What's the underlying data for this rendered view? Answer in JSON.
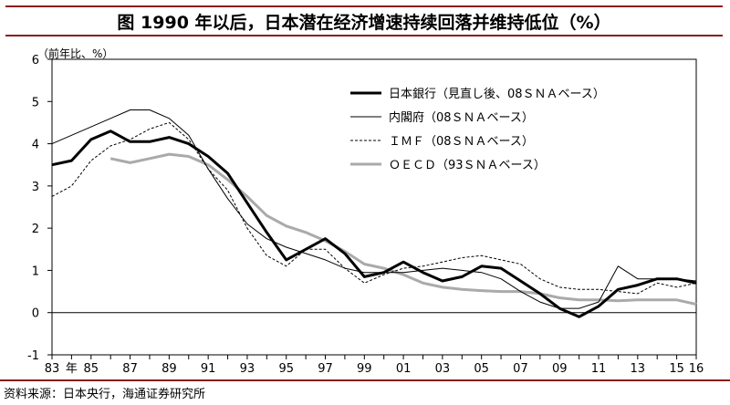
{
  "header": {
    "title": "图  1990 年以后，日本潜在经济增速持续回落并维持低位（%）"
  },
  "footer": {
    "source": "资料来源：日本央行，海通证券研究所"
  },
  "chart_data": {
    "type": "line",
    "title": "图  1990 年以后，日本潜在经济增速持续回落并维持低位（%）",
    "ylabel": "（前年比、%）",
    "xlabel": "年",
    "ylim": [
      -1,
      6
    ],
    "yticks": [
      -1,
      0,
      1,
      2,
      3,
      4,
      5,
      6
    ],
    "xlim": [
      1983,
      2016
    ],
    "xtick_labels": [
      "83",
      "85",
      "87",
      "89",
      "91",
      "93",
      "95",
      "97",
      "99",
      "01",
      "03",
      "05",
      "07",
      "09",
      "11",
      "13",
      "15",
      "16"
    ],
    "xtick_years": [
      1983,
      1985,
      1987,
      1989,
      1991,
      1993,
      1995,
      1997,
      1999,
      2001,
      2003,
      2005,
      2007,
      2009,
      2011,
      2013,
      2015,
      2016
    ],
    "grid": false,
    "legend_position": "top-right",
    "series": [
      {
        "name": "日本銀行（見直し後、08ＳＮＡベース）",
        "style": "thick",
        "color": "#000000",
        "x": [
          1983,
          1984,
          1985,
          1986,
          1987,
          1988,
          1989,
          1990,
          1991,
          1992,
          1993,
          1994,
          1995,
          1996,
          1997,
          1998,
          1999,
          2000,
          2001,
          2002,
          2003,
          2004,
          2005,
          2006,
          2007,
          2008,
          2009,
          2010,
          2011,
          2012,
          2013,
          2014,
          2015,
          2016
        ],
        "y": [
          3.5,
          3.6,
          4.1,
          4.3,
          4.05,
          4.05,
          4.15,
          4.0,
          3.7,
          3.3,
          2.6,
          1.9,
          1.25,
          1.5,
          1.75,
          1.4,
          0.85,
          0.95,
          1.2,
          0.95,
          0.75,
          0.85,
          1.1,
          1.05,
          0.75,
          0.45,
          0.1,
          -0.1,
          0.15,
          0.55,
          0.65,
          0.8,
          0.8,
          0.7
        ]
      },
      {
        "name": "内閣府（08ＳＮＡベース）",
        "style": "thin",
        "color": "#000000",
        "x": [
          1983,
          1984,
          1985,
          1986,
          1987,
          1988,
          1989,
          1990,
          1991,
          1992,
          1993,
          1994,
          1995,
          1996,
          1997,
          1998,
          1999,
          2000,
          2001,
          2002,
          2003,
          2004,
          2005,
          2006,
          2007,
          2008,
          2009,
          2010,
          2011,
          2012,
          2013,
          2014,
          2015,
          2016
        ],
        "y": [
          4.0,
          4.2,
          4.4,
          4.6,
          4.8,
          4.8,
          4.6,
          4.2,
          3.4,
          2.7,
          2.1,
          1.75,
          1.55,
          1.4,
          1.25,
          1.05,
          0.95,
          0.95,
          0.95,
          1.0,
          1.05,
          1.0,
          0.95,
          0.8,
          0.5,
          0.25,
          0.1,
          0.1,
          0.25,
          1.1,
          0.8,
          0.8,
          0.8,
          0.75
        ]
      },
      {
        "name": "ＩＭＦ（08ＳＮＡベース）",
        "style": "dashed",
        "color": "#000000",
        "x": [
          1983,
          1984,
          1985,
          1986,
          1987,
          1988,
          1989,
          1990,
          1991,
          1992,
          1993,
          1994,
          1995,
          1996,
          1997,
          1998,
          1999,
          2000,
          2001,
          2002,
          2003,
          2004,
          2005,
          2006,
          2007,
          2008,
          2009,
          2010,
          2011,
          2012,
          2013,
          2014,
          2015,
          2016
        ],
        "y": [
          2.75,
          3.0,
          3.6,
          3.95,
          4.1,
          4.35,
          4.5,
          4.1,
          3.4,
          2.9,
          2.0,
          1.35,
          1.1,
          1.5,
          1.5,
          1.05,
          0.7,
          0.9,
          1.05,
          1.1,
          1.2,
          1.3,
          1.35,
          1.25,
          1.15,
          0.8,
          0.6,
          0.55,
          0.55,
          0.5,
          0.45,
          0.7,
          0.6,
          0.7
        ]
      },
      {
        "name": "ＯＥＣＤ（93ＳＮＡベース）",
        "style": "gray",
        "color": "#aaaaaa",
        "x": [
          1986,
          1987,
          1988,
          1989,
          1990,
          1991,
          1992,
          1993,
          1994,
          1995,
          1996,
          1997,
          1998,
          1999,
          2000,
          2001,
          2002,
          2003,
          2004,
          2005,
          2006,
          2007,
          2008,
          2009,
          2010,
          2011,
          2012,
          2013,
          2014,
          2015,
          2016
        ],
        "y": [
          3.65,
          3.55,
          3.65,
          3.75,
          3.7,
          3.5,
          3.15,
          2.75,
          2.3,
          2.05,
          1.9,
          1.7,
          1.45,
          1.15,
          1.05,
          0.9,
          0.7,
          0.6,
          0.55,
          0.52,
          0.5,
          0.5,
          0.45,
          0.35,
          0.3,
          0.3,
          0.28,
          0.3,
          0.3,
          0.3,
          0.2
        ]
      }
    ]
  }
}
